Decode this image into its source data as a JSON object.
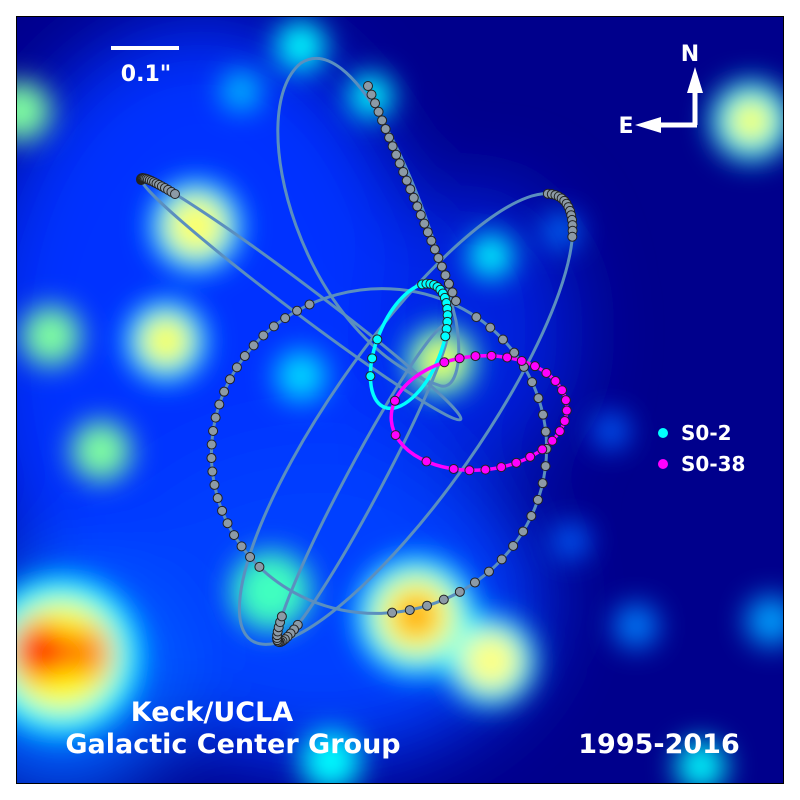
{
  "scale_bar": {
    "label": "0.1\""
  },
  "compass": {
    "north": "N",
    "east": "E"
  },
  "legend": [
    {
      "label": "S0-2",
      "color": "#00ffff"
    },
    {
      "label": "S0-38",
      "color": "#ff00ff"
    }
  ],
  "credit": {
    "line1": "Keck/UCLA",
    "line2": "Galactic Center Group"
  },
  "years": "1995-2016",
  "colors": {
    "background": "#00008c",
    "orbit": "#5b8fbf",
    "marker": "#8c9aa6",
    "s02": "#00ffff",
    "s038": "#ff00ff"
  }
}
